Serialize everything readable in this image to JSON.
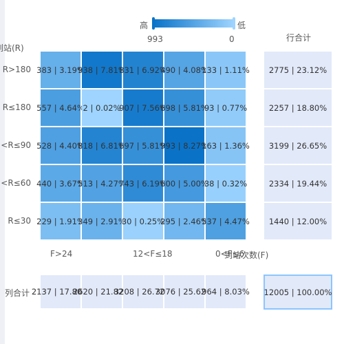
{
  "legend": {
    "high_label": "高",
    "low_label": "低",
    "max_value": "993",
    "min_value": "0",
    "high_color": "#0a73c8",
    "low_color": "#9ed4ff"
  },
  "labels": {
    "row_axis": "到站(R)",
    "col_axis": "到站次数(F)",
    "row_total": "行合计",
    "col_total": "列合计"
  },
  "colors": {
    "sum_bg": "#e2e9f9",
    "total_border": "#8cc4ff"
  },
  "chart_data": {
    "type": "heatmap",
    "row_labels": [
      "R>180",
      "R≤180",
      "<R≤90",
      "<R≤60",
      "R≤30"
    ],
    "col_tick_labels": [
      "F>24",
      "12<F≤18",
      "0<F≤6"
    ],
    "values": [
      [
        383,
        938,
        831,
        490,
        133
      ],
      [
        557,
        2,
        907,
        698,
        93
      ],
      [
        528,
        818,
        697,
        993,
        163
      ],
      [
        440,
        513,
        743,
        600,
        38
      ],
      [
        229,
        349,
        30,
        295,
        537
      ]
    ],
    "cell_text": [
      [
        "383 | 3.19%",
        "938 | 7.81%",
        "831 | 6.92%",
        "490 | 4.08%",
        "133 | 1.11%"
      ],
      [
        "557 | 4.64%",
        "2 | 0.02%",
        "907 | 7.56%",
        "698 | 5.81%",
        "93 | 0.77%"
      ],
      [
        "528 | 4.40%",
        "818 | 6.81%",
        "697 | 5.81%",
        "993 | 8.27%",
        "163 | 1.36%"
      ],
      [
        "440 | 3.67%",
        "513 | 4.27%",
        "743 | 6.19%",
        "600 | 5.00%",
        "38 | 0.32%"
      ],
      [
        "229 | 1.91%",
        "349 | 2.91%",
        "30 | 0.25%",
        "295 | 2.46%",
        "537 | 4.47%"
      ]
    ],
    "row_totals": [
      "2775 | 23.12%",
      "2257 | 18.80%",
      "3199 | 26.65%",
      "2334 | 19.44%",
      "1440 | 12.00%"
    ],
    "col_totals": [
      "2137 | 17.80%",
      "2620 | 21.82%",
      "3208 | 26.72%",
      "3076 | 25.62%",
      "964 | 8.03%"
    ],
    "grand_total": "12005 | 100.00%",
    "value_range": [
      0,
      993
    ]
  }
}
